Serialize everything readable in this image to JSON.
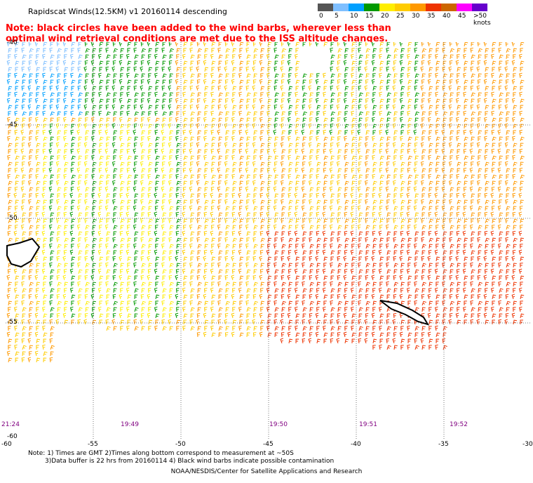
{
  "title": "Rapidscat Winds(12.5KM) v1 20160114 descending",
  "note": "Note: black circles have been added to the wind barbs, wherever less than optimal wind retrieval conditions are met due to the ISS altitude changes.",
  "legend": {
    "ticks": [
      "0",
      "5",
      "10",
      "15",
      "20",
      "25",
      "30",
      "35",
      "40",
      "45",
      ">50 knots"
    ],
    "colors": [
      "#555555",
      "#7fbfff",
      "#00a0ff",
      "#009900",
      "#ffee00",
      "#ffcc00",
      "#ff9900",
      "#ee3300",
      "#cc6600",
      "#ff00ff",
      "#6600cc"
    ]
  },
  "map": {
    "lat_labels": [
      "-40",
      "-45",
      "-50",
      "-55",
      "-60"
    ],
    "lon_labels": [
      "-60",
      "-55",
      "-50",
      "-45",
      "-40",
      "-35",
      "-30"
    ],
    "time_labels": [
      "21:24",
      "19:49",
      "19:50",
      "19:51",
      "19:52"
    ],
    "lat_range": [
      -60,
      -40
    ],
    "lon_range": [
      -60,
      -30
    ]
  },
  "footnote": {
    "line1": "Note: 1) Times are GMT 2)Times along bottom correspond to measurement at ~50S",
    "line2": "3)Data buffer is 22 hrs from 20160114 4) Black wind barbs indicate possible contamination"
  },
  "credit": "NOAA/NESDIS/Center for Satellite Applications and Research"
}
